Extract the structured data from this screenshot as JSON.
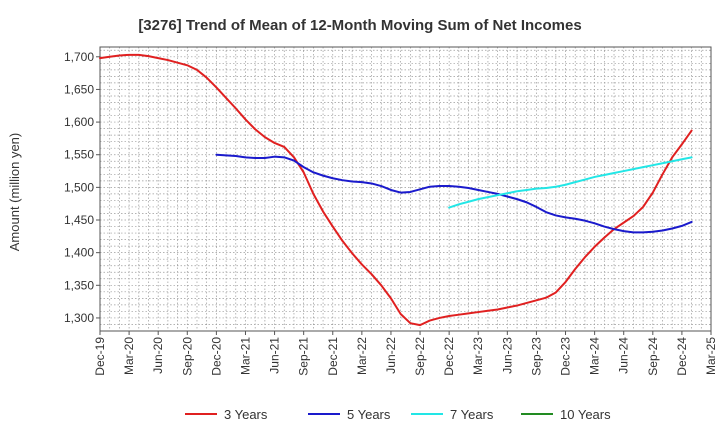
{
  "chart_data": {
    "type": "line",
    "title": "[3276]  Trend of Mean of 12-Month Moving Sum of Net Incomes",
    "xlabel": "",
    "ylabel": "Amount (million yen)",
    "ylim": [
      1280,
      1715
    ],
    "yticks": [
      1300,
      1350,
      1400,
      1450,
      1500,
      1550,
      1600,
      1650,
      1700
    ],
    "ytick_labels": [
      "1,300",
      "1,350",
      "1,400",
      "1,450",
      "1,500",
      "1,550",
      "1,600",
      "1,650",
      "1,700"
    ],
    "xlim": [
      "2019-12",
      "2025-03"
    ],
    "xtick_labels": [
      "Dec-19",
      "Mar-20",
      "Jun-20",
      "Sep-20",
      "Dec-20",
      "Mar-21",
      "Jun-21",
      "Sep-21",
      "Dec-21",
      "Mar-22",
      "Jun-22",
      "Sep-22",
      "Dec-22",
      "Mar-23",
      "Jun-23",
      "Sep-23",
      "Dec-23",
      "Mar-24",
      "Jun-24",
      "Sep-24",
      "Dec-24",
      "Mar-25"
    ],
    "grid": true,
    "legend_position": "bottom",
    "series": [
      {
        "name": "3 Years",
        "color": "#e02020",
        "points": [
          [
            "2019-12",
            1698
          ],
          [
            "2020-01",
            1700
          ],
          [
            "2020-02",
            1702
          ],
          [
            "2020-03",
            1703
          ],
          [
            "2020-04",
            1703
          ],
          [
            "2020-05",
            1701
          ],
          [
            "2020-06",
            1698
          ],
          [
            "2020-07",
            1695
          ],
          [
            "2020-08",
            1691
          ],
          [
            "2020-09",
            1687
          ],
          [
            "2020-10",
            1680
          ],
          [
            "2020-11",
            1668
          ],
          [
            "2020-12",
            1653
          ],
          [
            "2021-01",
            1637
          ],
          [
            "2021-02",
            1621
          ],
          [
            "2021-03",
            1604
          ],
          [
            "2021-04",
            1589
          ],
          [
            "2021-05",
            1577
          ],
          [
            "2021-06",
            1568
          ],
          [
            "2021-07",
            1562
          ],
          [
            "2021-08",
            1546
          ],
          [
            "2021-09",
            1523
          ],
          [
            "2021-10",
            1490
          ],
          [
            "2021-11",
            1463
          ],
          [
            "2021-12",
            1440
          ],
          [
            "2022-01",
            1418
          ],
          [
            "2022-02",
            1399
          ],
          [
            "2022-03",
            1382
          ],
          [
            "2022-04",
            1367
          ],
          [
            "2022-05",
            1350
          ],
          [
            "2022-06",
            1330
          ],
          [
            "2022-07",
            1306
          ],
          [
            "2022-08",
            1292
          ],
          [
            "2022-09",
            1289
          ],
          [
            "2022-10",
            1296
          ],
          [
            "2022-11",
            1300
          ],
          [
            "2022-12",
            1303
          ],
          [
            "2023-01",
            1305
          ],
          [
            "2023-02",
            1307
          ],
          [
            "2023-03",
            1309
          ],
          [
            "2023-04",
            1311
          ],
          [
            "2023-05",
            1313
          ],
          [
            "2023-06",
            1316
          ],
          [
            "2023-07",
            1319
          ],
          [
            "2023-08",
            1323
          ],
          [
            "2023-09",
            1327
          ],
          [
            "2023-10",
            1331
          ],
          [
            "2023-11",
            1339
          ],
          [
            "2023-12",
            1355
          ],
          [
            "2024-01",
            1375
          ],
          [
            "2024-02",
            1393
          ],
          [
            "2024-03",
            1409
          ],
          [
            "2024-04",
            1423
          ],
          [
            "2024-05",
            1436
          ],
          [
            "2024-06",
            1446
          ],
          [
            "2024-07",
            1456
          ],
          [
            "2024-08",
            1470
          ],
          [
            "2024-09",
            1492
          ],
          [
            "2024-10",
            1520
          ],
          [
            "2024-11",
            1546
          ],
          [
            "2024-12",
            1566
          ],
          [
            "2025-01",
            1587
          ]
        ]
      },
      {
        "name": "5 Years",
        "color": "#1a1acc",
        "points": [
          [
            "2020-12",
            1550
          ],
          [
            "2021-01",
            1549
          ],
          [
            "2021-02",
            1548
          ],
          [
            "2021-03",
            1546
          ],
          [
            "2021-04",
            1545
          ],
          [
            "2021-05",
            1545
          ],
          [
            "2021-06",
            1547
          ],
          [
            "2021-07",
            1546
          ],
          [
            "2021-08",
            1541
          ],
          [
            "2021-09",
            1531
          ],
          [
            "2021-10",
            1523
          ],
          [
            "2021-11",
            1518
          ],
          [
            "2021-12",
            1514
          ],
          [
            "2022-01",
            1511
          ],
          [
            "2022-02",
            1509
          ],
          [
            "2022-03",
            1508
          ],
          [
            "2022-04",
            1506
          ],
          [
            "2022-05",
            1502
          ],
          [
            "2022-06",
            1496
          ],
          [
            "2022-07",
            1492
          ],
          [
            "2022-08",
            1493
          ],
          [
            "2022-09",
            1497
          ],
          [
            "2022-10",
            1501
          ],
          [
            "2022-11",
            1502
          ],
          [
            "2022-12",
            1502
          ],
          [
            "2023-01",
            1501
          ],
          [
            "2023-02",
            1499
          ],
          [
            "2023-03",
            1496
          ],
          [
            "2023-04",
            1493
          ],
          [
            "2023-05",
            1490
          ],
          [
            "2023-06",
            1486
          ],
          [
            "2023-07",
            1482
          ],
          [
            "2023-08",
            1477
          ],
          [
            "2023-09",
            1470
          ],
          [
            "2023-10",
            1462
          ],
          [
            "2023-11",
            1457
          ],
          [
            "2023-12",
            1454
          ],
          [
            "2024-01",
            1452
          ],
          [
            "2024-02",
            1449
          ],
          [
            "2024-03",
            1445
          ],
          [
            "2024-04",
            1440
          ],
          [
            "2024-05",
            1436
          ],
          [
            "2024-06",
            1433
          ],
          [
            "2024-07",
            1431
          ],
          [
            "2024-08",
            1431
          ],
          [
            "2024-09",
            1432
          ],
          [
            "2024-10",
            1434
          ],
          [
            "2024-11",
            1437
          ],
          [
            "2024-12",
            1441
          ],
          [
            "2025-01",
            1447
          ]
        ]
      },
      {
        "name": "7 Years",
        "color": "#22e6e6",
        "points": [
          [
            "2022-12",
            1469
          ],
          [
            "2023-01",
            1474
          ],
          [
            "2023-02",
            1478
          ],
          [
            "2023-03",
            1482
          ],
          [
            "2023-04",
            1485
          ],
          [
            "2023-05",
            1488
          ],
          [
            "2023-06",
            1491
          ],
          [
            "2023-07",
            1494
          ],
          [
            "2023-08",
            1496
          ],
          [
            "2023-09",
            1498
          ],
          [
            "2023-10",
            1499
          ],
          [
            "2023-11",
            1501
          ],
          [
            "2023-12",
            1504
          ],
          [
            "2024-01",
            1508
          ],
          [
            "2024-02",
            1512
          ],
          [
            "2024-03",
            1516
          ],
          [
            "2024-04",
            1519
          ],
          [
            "2024-05",
            1522
          ],
          [
            "2024-06",
            1525
          ],
          [
            "2024-07",
            1528
          ],
          [
            "2024-08",
            1531
          ],
          [
            "2024-09",
            1534
          ],
          [
            "2024-10",
            1537
          ],
          [
            "2024-11",
            1540
          ],
          [
            "2024-12",
            1543
          ],
          [
            "2025-01",
            1546
          ]
        ]
      },
      {
        "name": "10 Years",
        "color": "#228b22",
        "points": []
      }
    ]
  }
}
